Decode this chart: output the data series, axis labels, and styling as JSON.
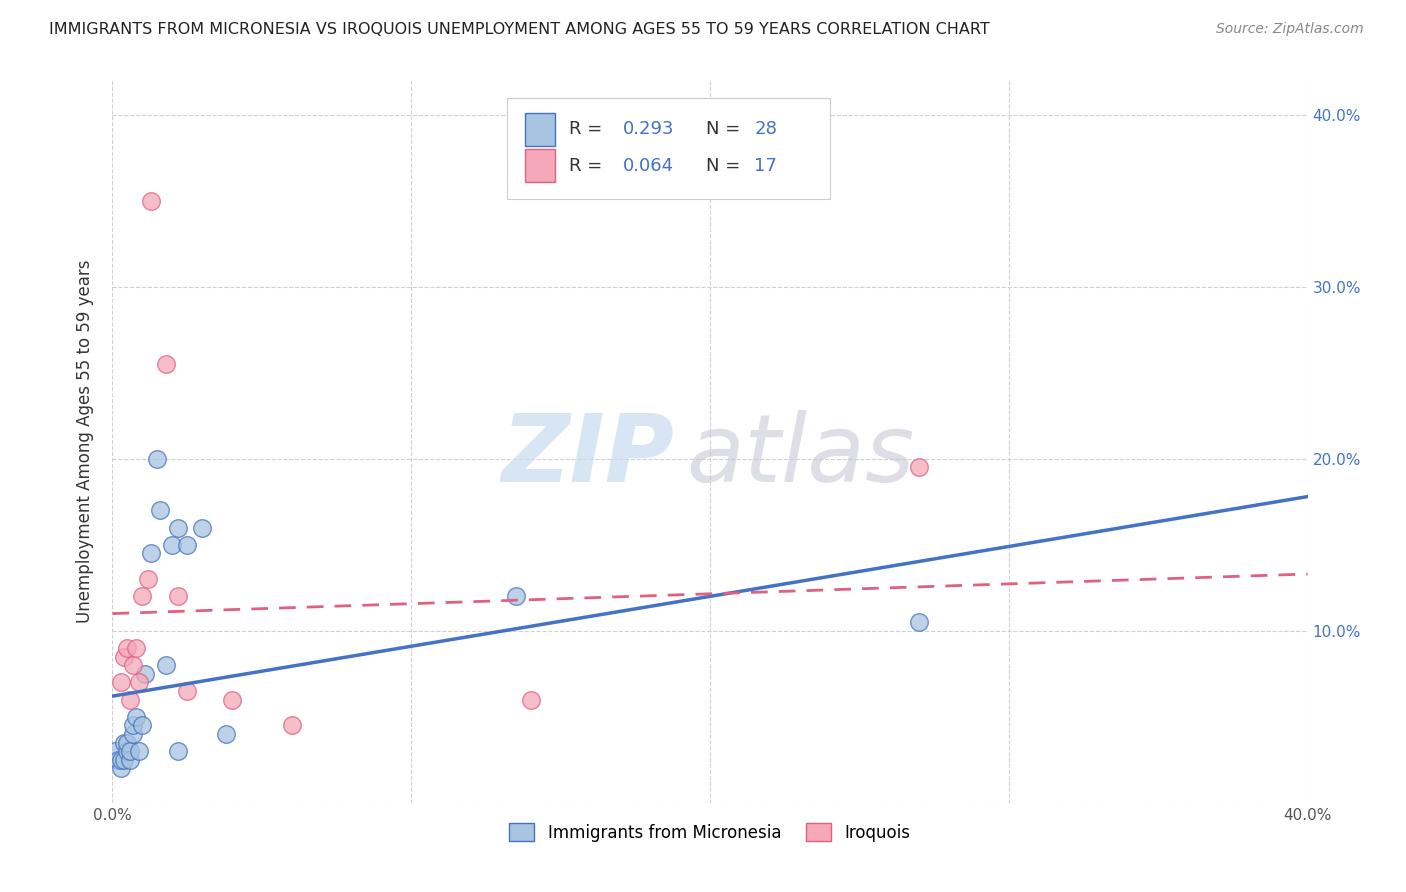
{
  "title": "IMMIGRANTS FROM MICRONESIA VS IROQUOIS UNEMPLOYMENT AMONG AGES 55 TO 59 YEARS CORRELATION CHART",
  "source": "Source: ZipAtlas.com",
  "ylabel": "Unemployment Among Ages 55 to 59 years",
  "xlim": [
    0.0,
    0.4
  ],
  "ylim": [
    0.0,
    0.42
  ],
  "yticks": [
    0.0,
    0.1,
    0.2,
    0.3,
    0.4
  ],
  "ytick_labels_right": [
    "",
    "10.0%",
    "20.0%",
    "30.0%",
    "40.0%"
  ],
  "xticks": [
    0.0,
    0.1,
    0.2,
    0.3,
    0.4
  ],
  "xtick_labels": [
    "0.0%",
    "",
    "",
    "",
    "40.0%"
  ],
  "legend_R1": "0.293",
  "legend_N1": "28",
  "legend_R2": "0.064",
  "legend_N2": "17",
  "color_micronesia_fill": "#a8c4e0",
  "color_micronesia_edge": "#4472c4",
  "color_iroquois_fill": "#f4a8b8",
  "color_iroquois_edge": "#e06080",
  "color_line_micronesia": "#4472c4",
  "color_line_iroquois": "#e06080",
  "micronesia_x": [
    0.001,
    0.002,
    0.003,
    0.003,
    0.004,
    0.004,
    0.005,
    0.005,
    0.006,
    0.006,
    0.007,
    0.007,
    0.008,
    0.009,
    0.01,
    0.011,
    0.013,
    0.015,
    0.016,
    0.018,
    0.02,
    0.022,
    0.022,
    0.025,
    0.03,
    0.038,
    0.135,
    0.27
  ],
  "micronesia_y": [
    0.03,
    0.025,
    0.02,
    0.025,
    0.025,
    0.035,
    0.03,
    0.035,
    0.025,
    0.03,
    0.04,
    0.045,
    0.05,
    0.03,
    0.045,
    0.075,
    0.145,
    0.2,
    0.17,
    0.08,
    0.15,
    0.03,
    0.16,
    0.15,
    0.16,
    0.04,
    0.12,
    0.105
  ],
  "iroquois_x": [
    0.003,
    0.004,
    0.005,
    0.006,
    0.007,
    0.008,
    0.009,
    0.01,
    0.012,
    0.013,
    0.018,
    0.022,
    0.025,
    0.04,
    0.06,
    0.14,
    0.27
  ],
  "iroquois_y": [
    0.07,
    0.085,
    0.09,
    0.06,
    0.08,
    0.09,
    0.07,
    0.12,
    0.13,
    0.35,
    0.255,
    0.12,
    0.065,
    0.06,
    0.045,
    0.06,
    0.195
  ],
  "micronesia_line_x": [
    0.0,
    0.4
  ],
  "micronesia_line_y": [
    0.062,
    0.178
  ],
  "iroquois_line_x": [
    0.0,
    0.4
  ],
  "iroquois_line_y": [
    0.11,
    0.133
  ],
  "marker_size": 160,
  "background_color": "#ffffff",
  "grid_color": "#d0d0d0",
  "watermark_zip": "ZIP",
  "watermark_atlas": "atlas"
}
